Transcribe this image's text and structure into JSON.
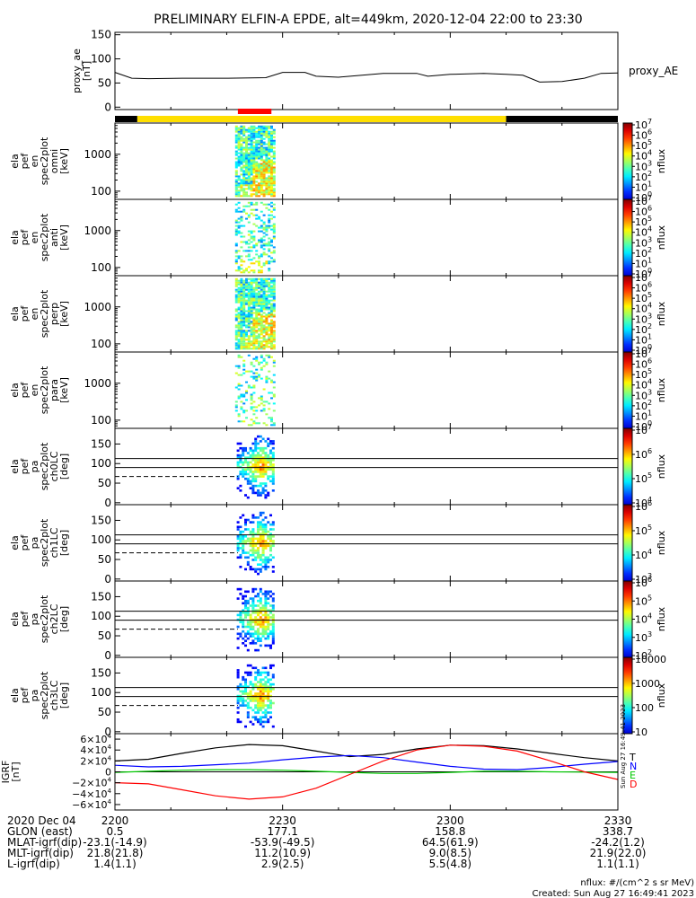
{
  "title": "PRELIMINARY ELFIN-A EPDE, alt=449km, 2020-12-04 22:00 to 23:30",
  "chart_data": [
    {
      "type": "line",
      "id": "ae",
      "ylabel_lines": [
        "proxy_ae",
        "[nT]"
      ],
      "ylim": [
        -5,
        155
      ],
      "yticks": [
        0,
        50,
        100,
        150
      ],
      "series": [
        {
          "name": "proxy_AE",
          "x": [
            0,
            3,
            6,
            12,
            20,
            27,
            30,
            34,
            36,
            40,
            48,
            54,
            56,
            60,
            66,
            70,
            73,
            76,
            80,
            84,
            87,
            90
          ],
          "y": [
            72,
            60,
            59,
            60,
            60,
            61,
            72,
            72,
            64,
            62,
            70,
            70,
            64,
            68,
            70,
            68,
            66,
            52,
            53,
            60,
            70,
            71
          ]
        }
      ]
    },
    {
      "type": "heatmap",
      "id": "en_omni",
      "ylabel_lines": [
        "ela",
        "pef",
        "en",
        "spec2plot",
        "omni",
        "[keV]"
      ],
      "yscale": "log",
      "ylim": [
        60,
        7000
      ],
      "yticks": [
        100,
        1000
      ],
      "ytick_labels": [
        "100",
        "1000"
      ],
      "colorbar_ticks": [
        "10",
        "10",
        "10",
        "10",
        "10",
        "10",
        "10",
        "10"
      ],
      "colorbar_exps": [
        "0",
        "1",
        "2",
        "3",
        "4",
        "5",
        "6",
        "7"
      ],
      "colorbar_label": "nflux"
    },
    {
      "type": "heatmap",
      "id": "en_anti",
      "ylabel_lines": [
        "ela",
        "pef",
        "en",
        "spec2plot",
        "anti",
        "[keV]"
      ],
      "yscale": "log",
      "ylim": [
        60,
        7000
      ],
      "yticks": [
        100,
        1000
      ],
      "ytick_labels": [
        "100",
        "1000"
      ],
      "colorbar_ticks": [
        "10",
        "10",
        "10",
        "10",
        "10",
        "10",
        "10",
        "10"
      ],
      "colorbar_exps": [
        "0",
        "1",
        "2",
        "3",
        "4",
        "5",
        "6",
        "7"
      ],
      "colorbar_label": "nflux"
    },
    {
      "type": "heatmap",
      "id": "en_perp",
      "ylabel_lines": [
        "ela",
        "pef",
        "en",
        "spec2plot",
        "perp",
        "[keV]"
      ],
      "yscale": "log",
      "ylim": [
        60,
        7000
      ],
      "yticks": [
        100,
        1000
      ],
      "ytick_labels": [
        "100",
        "1000"
      ],
      "colorbar_ticks": [
        "10",
        "10",
        "10",
        "10",
        "10",
        "10",
        "10",
        "10"
      ],
      "colorbar_exps": [
        "0",
        "1",
        "2",
        "3",
        "4",
        "5",
        "6",
        "7"
      ],
      "colorbar_label": "nflux"
    },
    {
      "type": "heatmap",
      "id": "en_para",
      "ylabel_lines": [
        "ela",
        "pef",
        "en",
        "spec2plot",
        "para",
        "[keV]"
      ],
      "yscale": "log",
      "ylim": [
        60,
        7000
      ],
      "yticks": [
        100,
        1000
      ],
      "ytick_labels": [
        "100",
        "1000"
      ],
      "colorbar_ticks": [
        "10",
        "10",
        "10",
        "10",
        "10",
        "10",
        "10",
        "10"
      ],
      "colorbar_exps": [
        "0",
        "1",
        "2",
        "3",
        "4",
        "5",
        "6",
        "7"
      ],
      "colorbar_label": "nflux"
    },
    {
      "type": "heatmap",
      "id": "pa_ch0",
      "ylabel_lines": [
        "ela",
        "pef",
        "pa",
        "spec2plot",
        "ch0LC",
        "[deg]"
      ],
      "ylim": [
        -5,
        190
      ],
      "yticks": [
        0,
        50,
        100,
        150
      ],
      "solid_lines": [
        90,
        113
      ],
      "dashed_lines": [
        67
      ],
      "colorbar_ticks": [
        "10",
        "10",
        "10",
        "10"
      ],
      "colorbar_exps": [
        "4",
        "5",
        "6",
        "7"
      ],
      "colorbar_label": "nflux"
    },
    {
      "type": "heatmap",
      "id": "pa_ch1",
      "ylabel_lines": [
        "ela",
        "pef",
        "pa",
        "spec2plot",
        "ch1LC",
        "[deg]"
      ],
      "ylim": [
        -5,
        190
      ],
      "yticks": [
        0,
        50,
        100,
        150
      ],
      "solid_lines": [
        90,
        113
      ],
      "dashed_lines": [
        67
      ],
      "colorbar_ticks": [
        "10",
        "10",
        "10",
        "10"
      ],
      "colorbar_exps": [
        "3",
        "4",
        "5",
        "6"
      ],
      "colorbar_label": "nflux"
    },
    {
      "type": "heatmap",
      "id": "pa_ch2",
      "ylabel_lines": [
        "ela",
        "pef",
        "pa",
        "spec2plot",
        "ch2LC",
        "[deg]"
      ],
      "ylim": [
        -5,
        190
      ],
      "yticks": [
        0,
        50,
        100,
        150
      ],
      "solid_lines": [
        90,
        113
      ],
      "dashed_lines": [
        67
      ],
      "colorbar_ticks": [
        "10",
        "10",
        "10",
        "10",
        "10"
      ],
      "colorbar_exps": [
        "2",
        "3",
        "4",
        "5",
        "6"
      ],
      "colorbar_label": "nflux"
    },
    {
      "type": "heatmap",
      "id": "pa_ch3",
      "ylabel_lines": [
        "ela",
        "pef",
        "pa",
        "spec2plot",
        "ch3LC",
        "[deg]"
      ],
      "ylim": [
        -5,
        190
      ],
      "yticks": [
        0,
        50,
        100,
        150
      ],
      "solid_lines": [
        90,
        113
      ],
      "dashed_lines": [
        67
      ],
      "colorbar_ticks": [
        "10",
        "100",
        "1000",
        "10000"
      ],
      "colorbar_exps": [
        "",
        "",
        "",
        ""
      ],
      "colorbar_label": "nflux"
    },
    {
      "type": "line",
      "id": "igrf",
      "ylabel_lines": [
        "IGRF",
        "[nT]"
      ],
      "ylim": [
        -70000,
        70000
      ],
      "yticks": [
        -60000,
        -40000,
        -20000,
        0,
        20000,
        40000,
        60000
      ],
      "ytick_labels": [
        "−6×10",
        "−4×10",
        "−2×10",
        "0",
        "2×10",
        "4×10",
        "6×10"
      ],
      "series": [
        {
          "name": "T",
          "color": "#000000",
          "x": [
            0,
            6,
            12,
            18,
            24,
            30,
            36,
            42,
            48,
            54,
            60,
            66,
            72,
            78,
            84,
            90
          ],
          "y": [
            20000,
            23000,
            34000,
            44000,
            50000,
            48000,
            38000,
            28000,
            32000,
            42000,
            49000,
            48000,
            42000,
            34000,
            26000,
            20000
          ]
        },
        {
          "name": "N",
          "color": "#0000ff",
          "x": [
            0,
            6,
            12,
            18,
            24,
            30,
            36,
            42,
            48,
            54,
            60,
            66,
            72,
            78,
            84,
            90
          ],
          "y": [
            12000,
            9000,
            10000,
            13000,
            16000,
            22000,
            27000,
            30000,
            26000,
            18000,
            10000,
            5000,
            4000,
            8000,
            14000,
            19000
          ]
        },
        {
          "name": "E",
          "color": "#00c800",
          "x": [
            0,
            6,
            12,
            18,
            24,
            30,
            36,
            42,
            48,
            54,
            60,
            66,
            72,
            78,
            84,
            90
          ],
          "y": [
            -1000,
            1000,
            3000,
            4000,
            4000,
            3000,
            1000,
            -1000,
            -3000,
            -3000,
            -1000,
            1000,
            1000,
            0,
            -500,
            -1000
          ]
        },
        {
          "name": "D",
          "color": "#ff0000",
          "x": [
            0,
            6,
            12,
            18,
            24,
            30,
            36,
            42,
            48,
            54,
            60,
            66,
            72,
            78,
            84,
            90
          ],
          "y": [
            -20000,
            -22000,
            -33000,
            -44000,
            -50000,
            -46000,
            -30000,
            -5000,
            20000,
            40000,
            49000,
            47000,
            38000,
            20000,
            0,
            -14000
          ]
        }
      ]
    }
  ],
  "time_axis": {
    "xlim": [
      0,
      90
    ],
    "major_ticks": [
      0,
      30,
      60,
      90
    ],
    "minor_ticks": [
      10,
      20,
      40,
      50,
      70,
      80
    ],
    "labels": [
      {
        "x": 0,
        "lines": [
          "2200",
          "0.5",
          "-23.1(-14.9)",
          "21.8(21.8)",
          "1.4(1.1)"
        ]
      },
      {
        "x": 30,
        "lines": [
          "2230",
          "177.1",
          "-53.9(-49.5)",
          "11.2(10.9)",
          "2.9(2.5)"
        ]
      },
      {
        "x": 60,
        "lines": [
          "2300",
          "158.8",
          "64.5(61.9)",
          "9.0(8.5)",
          "5.5(4.8)"
        ]
      },
      {
        "x": 90,
        "lines": [
          "2330",
          "338.7",
          "-24.2(1.2)",
          "21.9(22.0)",
          "1.1(1.1)"
        ]
      }
    ],
    "row_titles": [
      "2020 Dec 04",
      "GLON (east)",
      "MLAT-igrf(dip)",
      "MLT-igrf(dip)",
      "L-igrf(dip)"
    ]
  },
  "state_bar": [
    {
      "from": 0,
      "to": 4,
      "color": "#000000"
    },
    {
      "from": 4,
      "to": 70,
      "color": "#ffdf00"
    },
    {
      "from": 70,
      "to": 90,
      "color": "#000000"
    }
  ],
  "science_zone": {
    "from": 22,
    "to": 28,
    "color": "#ff0000"
  },
  "igrf_labels": [
    "T",
    "N",
    "E",
    "D"
  ],
  "side_stamp": "Sun Aug 27 16:49:41 2023",
  "footer": {
    "units": "nflux: #/(cm^2 s sr MeV)",
    "created": "Created: Sun Aug 27 16:49:41 2023"
  }
}
